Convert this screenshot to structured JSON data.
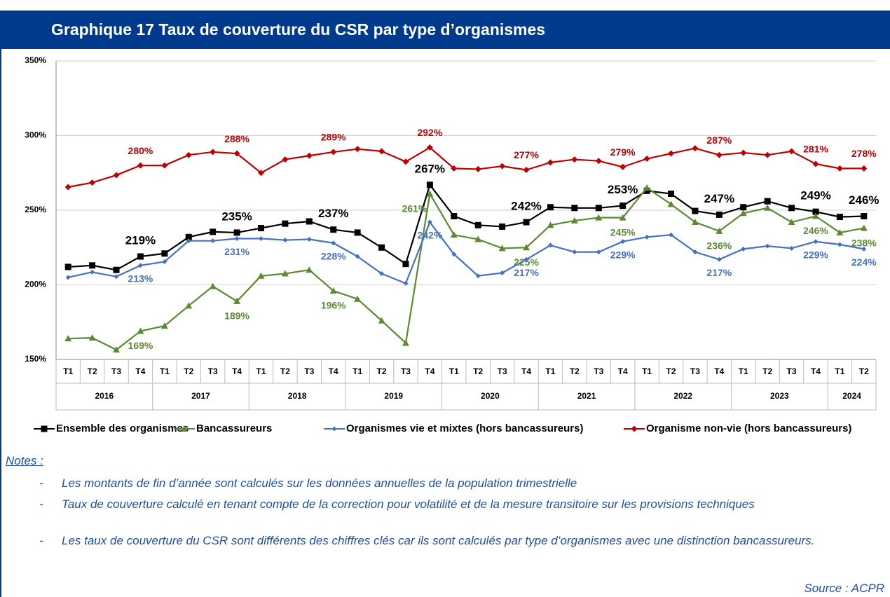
{
  "header": {
    "title": "Graphique 17 Taux de couverture du CSR par type d’organismes"
  },
  "chart_data": {
    "type": "line",
    "x": [
      {
        "quarter": "T1",
        "year": "2016"
      },
      {
        "quarter": "T2",
        "year": "2016"
      },
      {
        "quarter": "T3",
        "year": "2016"
      },
      {
        "quarter": "T4",
        "year": "2016"
      },
      {
        "quarter": "T1",
        "year": "2017"
      },
      {
        "quarter": "T2",
        "year": "2017"
      },
      {
        "quarter": "T3",
        "year": "2017"
      },
      {
        "quarter": "T4",
        "year": "2017"
      },
      {
        "quarter": "T1",
        "year": "2018"
      },
      {
        "quarter": "T2",
        "year": "2018"
      },
      {
        "quarter": "T3",
        "year": "2018"
      },
      {
        "quarter": "T4",
        "year": "2018"
      },
      {
        "quarter": "T1",
        "year": "2019"
      },
      {
        "quarter": "T2",
        "year": "2019"
      },
      {
        "quarter": "T3",
        "year": "2019"
      },
      {
        "quarter": "T4",
        "year": "2019"
      },
      {
        "quarter": "T1",
        "year": "2020"
      },
      {
        "quarter": "T2",
        "year": "2020"
      },
      {
        "quarter": "T3",
        "year": "2020"
      },
      {
        "quarter": "T4",
        "year": "2020"
      },
      {
        "quarter": "T1",
        "year": "2021"
      },
      {
        "quarter": "T2",
        "year": "2021"
      },
      {
        "quarter": "T3",
        "year": "2021"
      },
      {
        "quarter": "T4",
        "year": "2021"
      },
      {
        "quarter": "T1",
        "year": "2022"
      },
      {
        "quarter": "T2",
        "year": "2022"
      },
      {
        "quarter": "T3",
        "year": "2022"
      },
      {
        "quarter": "T4",
        "year": "2022"
      },
      {
        "quarter": "T1",
        "year": "2023"
      },
      {
        "quarter": "T2",
        "year": "2023"
      },
      {
        "quarter": "T3",
        "year": "2023"
      },
      {
        "quarter": "T4",
        "year": "2023"
      },
      {
        "quarter": "T1",
        "year": "2024"
      },
      {
        "quarter": "T2",
        "year": "2024"
      }
    ],
    "ylim": [
      150,
      350
    ],
    "yticks": [
      {
        "value": 150,
        "label": "150%"
      },
      {
        "value": 200,
        "label": "200%"
      },
      {
        "value": 250,
        "label": "250%"
      },
      {
        "value": 300,
        "label": "300%"
      },
      {
        "value": 350,
        "label": "350%"
      }
    ],
    "grid": true,
    "series": [
      {
        "name": "Ensemble des organismes",
        "color": "#000000",
        "marker": "square",
        "values": [
          212,
          213,
          210,
          219,
          221,
          232,
          235.5,
          235,
          238,
          241,
          242.5,
          237,
          235,
          225,
          214,
          267,
          246,
          240,
          239,
          242,
          252,
          251.5,
          251.5,
          253,
          263,
          261,
          249.5,
          247,
          252,
          256,
          251.5,
          249,
          245.5,
          246
        ],
        "value_labels": [
          null,
          null,
          null,
          "219%",
          null,
          null,
          null,
          "235%",
          null,
          null,
          null,
          "237%",
          null,
          null,
          null,
          "267%",
          null,
          null,
          null,
          "242%",
          null,
          null,
          null,
          "253%",
          null,
          null,
          null,
          "247%",
          null,
          null,
          null,
          "249%",
          null,
          "246%"
        ]
      },
      {
        "name": "Bancassureurs",
        "color": "#5b8a32",
        "marker": "triangle",
        "values": [
          164,
          164.5,
          156.5,
          169,
          172.5,
          186,
          199,
          189,
          206,
          207.5,
          210,
          196,
          190.5,
          176,
          161,
          261,
          233.5,
          230.5,
          224.5,
          225,
          240,
          243,
          245,
          245,
          265,
          254,
          242,
          236,
          248,
          251.5,
          242,
          246,
          235,
          238
        ],
        "value_labels": [
          null,
          null,
          null,
          "169%",
          null,
          null,
          null,
          "189%",
          null,
          null,
          null,
          "196%",
          null,
          null,
          null,
          "261%",
          null,
          null,
          null,
          "225%",
          null,
          null,
          null,
          "245%",
          null,
          null,
          null,
          "236%",
          null,
          null,
          null,
          "246%",
          null,
          "238%"
        ]
      },
      {
        "name": "Organismes vie et mixtes  (hors bancassureurs)",
        "color": "#4472c4",
        "marker": "plus",
        "values": [
          205,
          208.5,
          205.5,
          213,
          215.5,
          229.5,
          229.5,
          231,
          231,
          230,
          230.5,
          228,
          219,
          207.5,
          201,
          242,
          220.5,
          206,
          208,
          217,
          226.5,
          222,
          222,
          229,
          232,
          233.5,
          222,
          217,
          224,
          226,
          224.5,
          229,
          227,
          224
        ],
        "value_labels": [
          null,
          null,
          null,
          "213%",
          null,
          null,
          null,
          "231%",
          null,
          null,
          null,
          "228%",
          null,
          null,
          null,
          "242%",
          null,
          null,
          null,
          "217%",
          null,
          null,
          null,
          "229%",
          null,
          null,
          null,
          "217%",
          null,
          null,
          null,
          "229%",
          null,
          "224%"
        ]
      },
      {
        "name": "Organisme non-vie (hors bancassureurs)",
        "color": "#c00000",
        "marker": "diamond",
        "values": [
          265.5,
          268.5,
          273.5,
          280,
          280,
          287,
          289,
          288,
          275,
          284,
          286.5,
          289,
          291,
          289.5,
          282.5,
          292,
          278,
          277.5,
          279.5,
          277,
          282,
          284,
          283,
          279,
          284.5,
          288,
          291.5,
          287,
          288.5,
          287,
          289.5,
          281,
          278,
          278
        ],
        "value_labels": [
          null,
          null,
          null,
          "280%",
          null,
          null,
          null,
          "288%",
          null,
          null,
          null,
          "289%",
          null,
          null,
          null,
          "292%",
          null,
          null,
          null,
          "277%",
          null,
          null,
          null,
          "279%",
          null,
          null,
          null,
          "287%",
          null,
          null,
          null,
          "281%",
          null,
          "278%"
        ]
      }
    ]
  },
  "notes": {
    "title": "Notes :",
    "items": [
      "Les montants de fin d’année sont calculés sur les données annuelles de la population trimestrielle",
      "Taux de couverture calculé en tenant compte de la correction pour volatilité et de la mesure transitoire sur les provisions techniques",
      "Les taux de couverture du CSR sont différents des chiffres clés car ils sont calculés par type d’organismes avec une distinction bancassureurs."
    ],
    "source": "Source : ACPR"
  }
}
